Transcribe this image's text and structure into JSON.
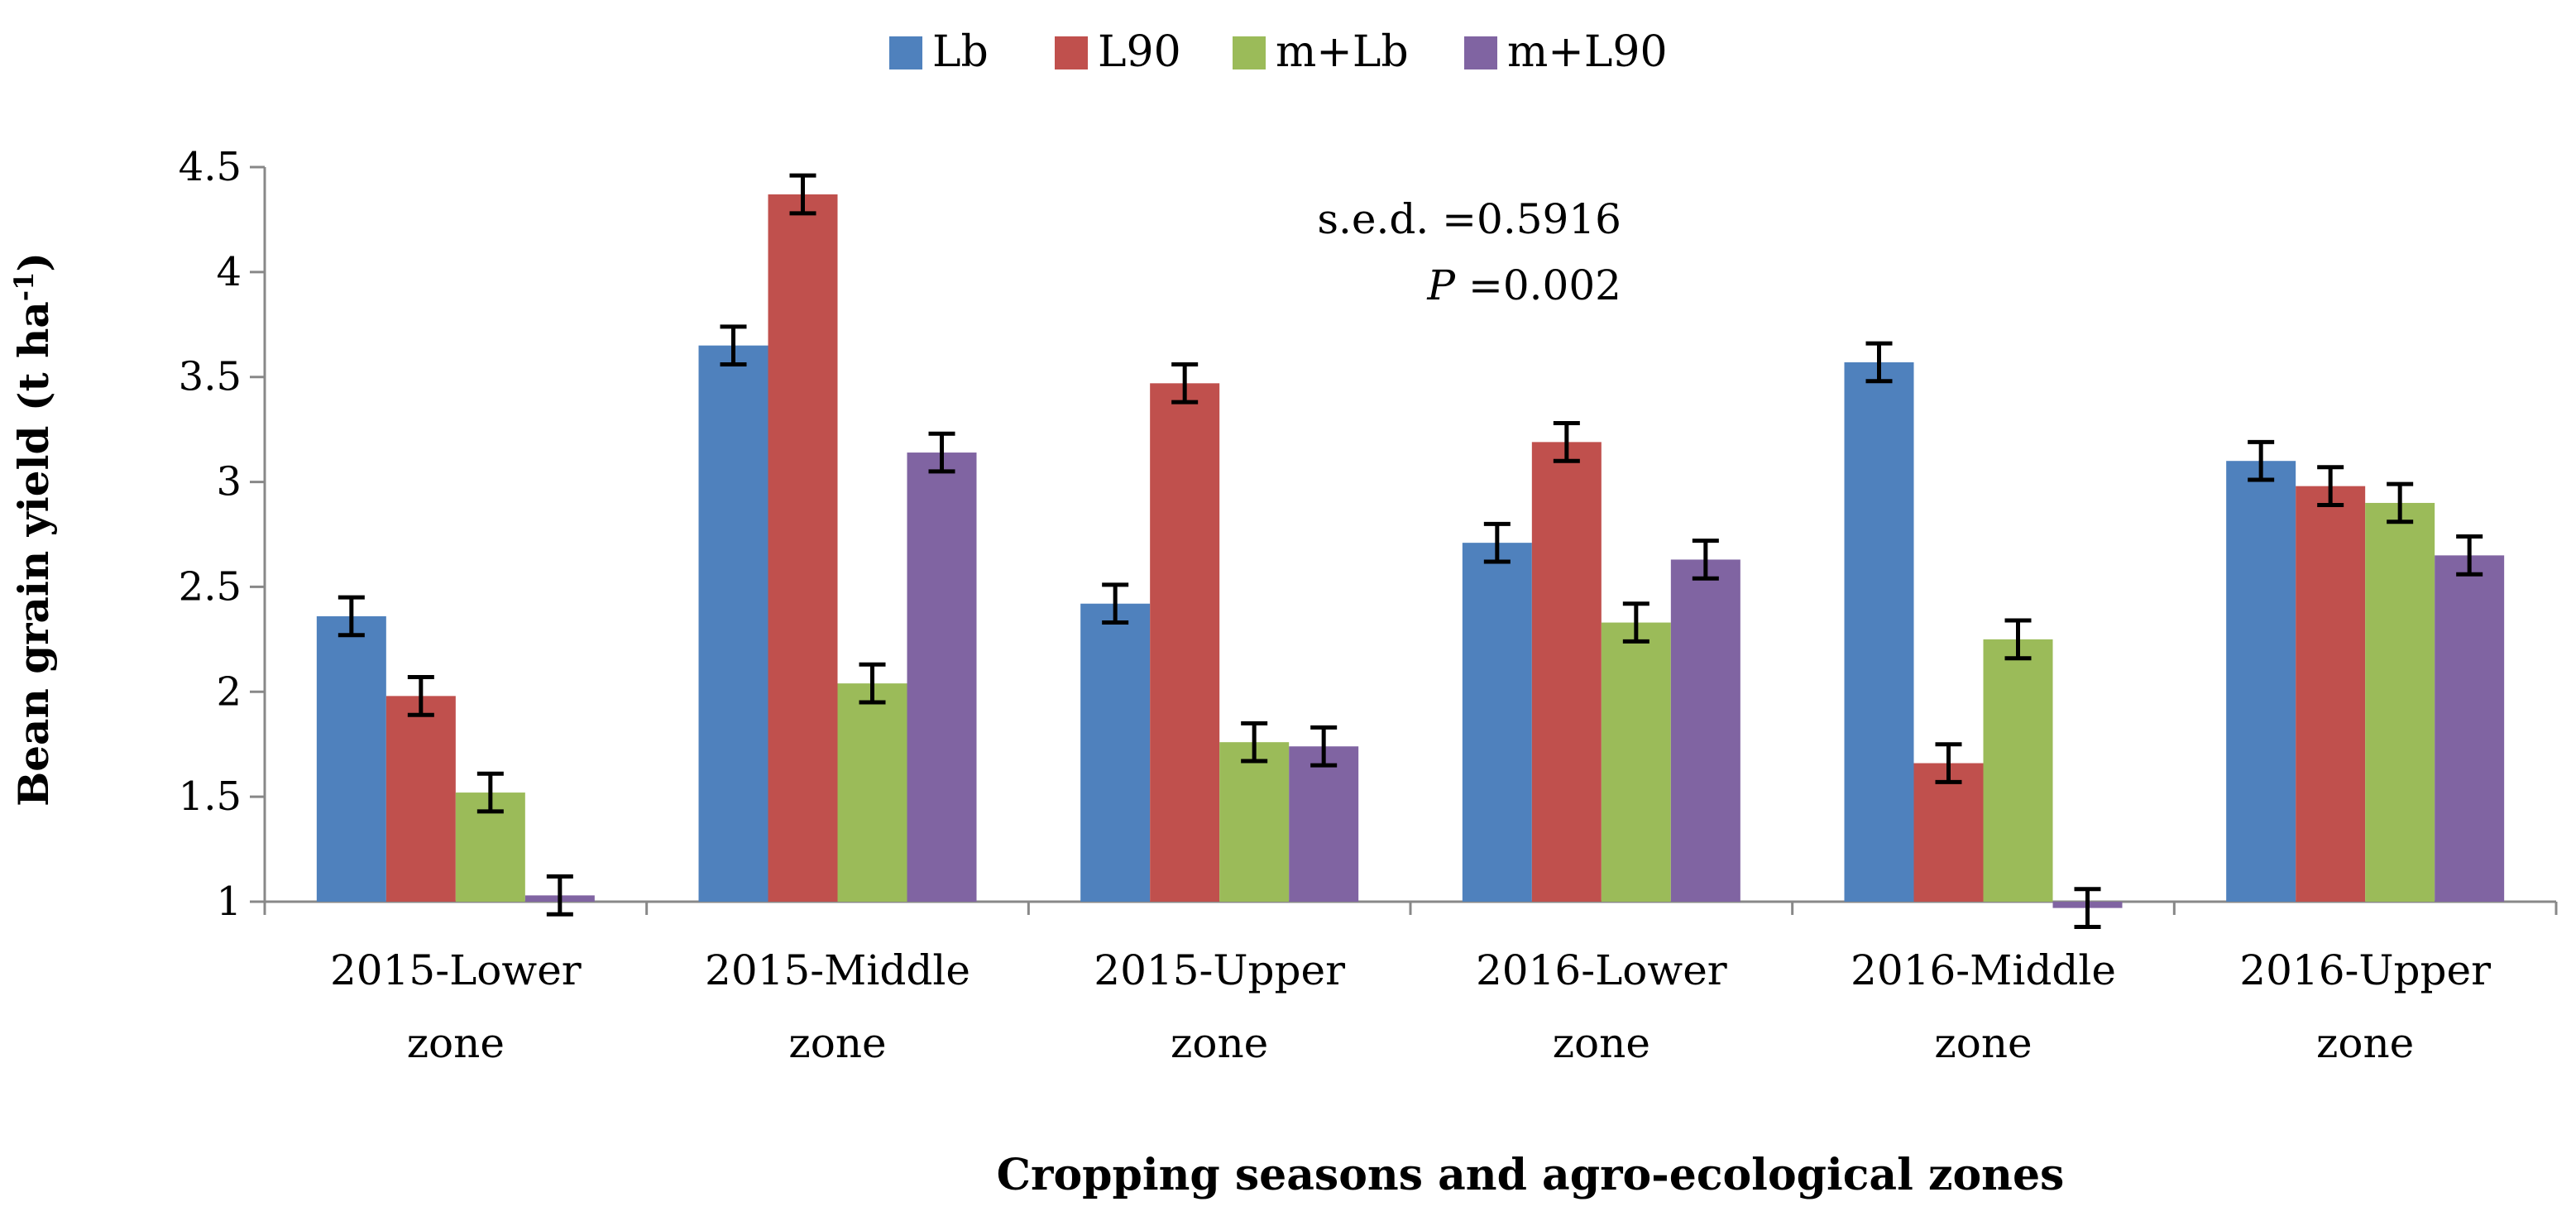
{
  "chart_data": {
    "type": "bar",
    "title": "",
    "xlabel": "Cropping seasons and agro-ecological zones",
    "ylabel": "Bean grain yield (t ha",
    "ylabel_sup": "-1",
    "ylabel_close": ")",
    "ylim": [
      1,
      4.5
    ],
    "yticks": [
      "1",
      "1.5",
      "2",
      "2.5",
      "3",
      "3.5",
      "4",
      "4.5"
    ],
    "categories": [
      [
        "2015-Lower",
        "zone"
      ],
      [
        "2015-Middle",
        "zone"
      ],
      [
        "2015-Upper",
        "zone"
      ],
      [
        "2016-Lower",
        "zone"
      ],
      [
        "2016-Middle",
        "zone"
      ],
      [
        "2016-Upper",
        "zone"
      ]
    ],
    "series": [
      {
        "name": "Lb",
        "color": "#4F81BD",
        "values": [
          2.36,
          3.65,
          2.42,
          2.71,
          3.57,
          3.1
        ]
      },
      {
        "name": "L90",
        "color": "#C0504D",
        "values": [
          1.98,
          4.37,
          3.47,
          3.19,
          1.66,
          2.98
        ]
      },
      {
        "name": "m+Lb",
        "color": "#9BBB59",
        "values": [
          1.52,
          2.04,
          1.76,
          2.33,
          2.25,
          2.9
        ]
      },
      {
        "name": "m+L90",
        "color": "#8064A2",
        "values": [
          1.03,
          3.14,
          1.74,
          2.63,
          0.97,
          2.65
        ]
      }
    ],
    "error_bar": 0.09,
    "legend_position": "top-center",
    "grid": false,
    "annotations": {
      "sed": "s.e.d. =0.5916",
      "p_label": "P",
      "p_value": " =0.002"
    }
  }
}
